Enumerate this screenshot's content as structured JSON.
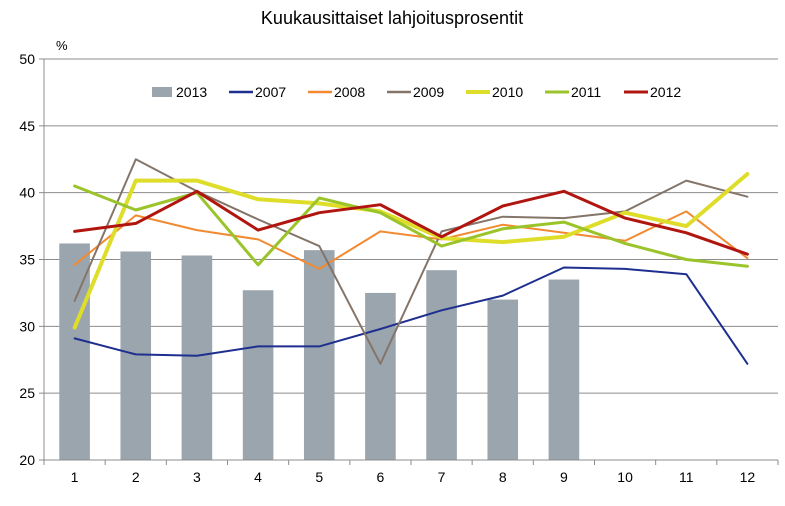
{
  "chart_data": {
    "type": "bar",
    "title": "Kuukausittaiset lahjoitusprosentit",
    "ylabel": "%",
    "xlabel": "",
    "ylim": [
      20,
      50
    ],
    "yticks": [
      20,
      25,
      30,
      35,
      40,
      45,
      50
    ],
    "categories": [
      "1",
      "2",
      "3",
      "4",
      "5",
      "6",
      "7",
      "8",
      "9",
      "10",
      "11",
      "12"
    ],
    "grid": true,
    "legend_position": "top",
    "bar_series": {
      "name": "2013",
      "color": "#9aa5ad",
      "values": [
        36.2,
        35.6,
        35.3,
        32.7,
        35.7,
        32.5,
        34.2,
        32.0,
        33.5,
        null,
        null,
        null
      ]
    },
    "line_series": [
      {
        "name": "2007",
        "color": "#1f2f8f",
        "width": 2,
        "values": [
          29.1,
          27.9,
          27.8,
          28.5,
          28.5,
          29.8,
          31.2,
          32.3,
          34.4,
          34.3,
          33.9,
          27.2
        ]
      },
      {
        "name": "2008",
        "color": "#f28a32",
        "width": 2,
        "values": [
          34.6,
          38.3,
          37.2,
          36.5,
          34.3,
          37.1,
          36.5,
          37.6,
          37.0,
          36.4,
          38.6,
          35.1
        ]
      },
      {
        "name": "2009",
        "color": "#857569",
        "width": 2,
        "values": [
          31.9,
          42.5,
          40.1,
          38.0,
          36.0,
          27.2,
          37.1,
          38.2,
          38.1,
          38.6,
          40.9,
          39.7
        ]
      },
      {
        "name": "2010",
        "color": "#dede2a",
        "width": 4,
        "values": [
          29.9,
          40.9,
          40.9,
          39.5,
          39.2,
          38.6,
          36.6,
          36.3,
          36.7,
          38.5,
          37.5,
          41.4
        ]
      },
      {
        "name": "2011",
        "color": "#9ac42a",
        "width": 3,
        "values": [
          40.5,
          38.7,
          40.0,
          34.6,
          39.6,
          38.5,
          36.0,
          37.3,
          37.8,
          36.2,
          35.0,
          34.5
        ]
      },
      {
        "name": "2012",
        "color": "#b0160f",
        "width": 3,
        "values": [
          37.1,
          37.7,
          40.1,
          37.2,
          38.5,
          39.1,
          36.7,
          39.0,
          40.1,
          38.1,
          37.0,
          35.4
        ]
      }
    ]
  }
}
